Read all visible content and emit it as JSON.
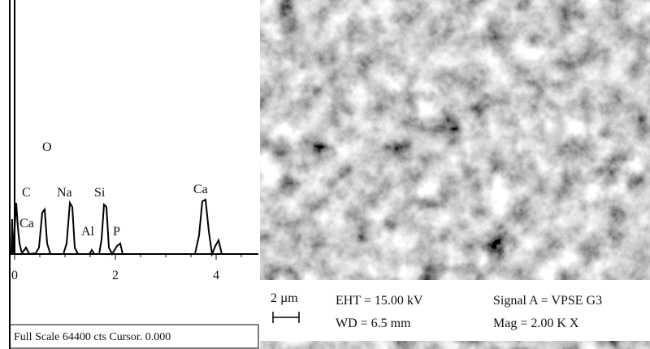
{
  "spectrum": {
    "peak_labels": [
      "O",
      "C",
      "Ca",
      "Na",
      "Si",
      "Al",
      "P",
      "Ca"
    ],
    "x_ticks": [
      "0",
      "2",
      "4"
    ],
    "footer": "Full Scale 64400 cts Cursor. 0.000"
  },
  "micrograph": {
    "scale_bar": "2 µm",
    "eht": "EHT = 15.00 kV",
    "wd": "WD = 6.5 mm",
    "signal": "Signal A = VPSE G3",
    "mag": "Mag = 2.00 K X"
  }
}
